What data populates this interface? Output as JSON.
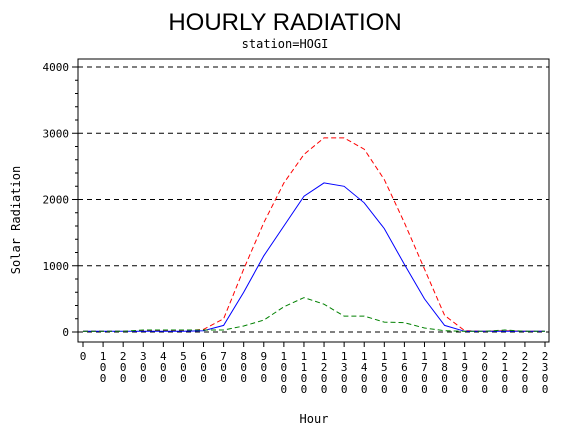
{
  "chart_data": {
    "type": "line",
    "title": "HOURLY RADIATION",
    "subtitle": "station=HOGI",
    "xlabel": "Hour",
    "ylabel": "Solar Radiation",
    "xlim": [
      0,
      2300
    ],
    "ylim": [
      0,
      4000
    ],
    "yticks": [
      0,
      1000,
      2000,
      3000,
      4000
    ],
    "xticks": [
      "0",
      "100",
      "200",
      "300",
      "400",
      "500",
      "600",
      "700",
      "800",
      "900",
      "1000",
      "1100",
      "1200",
      "1300",
      "1400",
      "1500",
      "1600",
      "1700",
      "1800",
      "1900",
      "2000",
      "2100",
      "2200",
      "2300"
    ],
    "grid": "horizontal dashed",
    "x": [
      0,
      100,
      200,
      300,
      400,
      500,
      600,
      700,
      800,
      900,
      1000,
      1100,
      1200,
      1300,
      1400,
      1500,
      1600,
      1700,
      1800,
      1900,
      2000,
      2100,
      2200,
      2300
    ],
    "series": [
      {
        "color": "#ff0000",
        "style": "dashed",
        "values": [
          10,
          10,
          10,
          20,
          20,
          20,
          40,
          200,
          950,
          1650,
          2250,
          2680,
          2930,
          2930,
          2760,
          2300,
          1650,
          950,
          250,
          20,
          10,
          20,
          10,
          10
        ]
      },
      {
        "color": "#0000ff",
        "style": "solid",
        "values": [
          10,
          10,
          10,
          10,
          10,
          10,
          20,
          100,
          600,
          1150,
          1600,
          2050,
          2250,
          2200,
          1950,
          1560,
          1020,
          500,
          100,
          10,
          10,
          10,
          10,
          10
        ]
      },
      {
        "color": "#008000",
        "style": "dashed",
        "values": [
          10,
          10,
          10,
          30,
          30,
          30,
          30,
          30,
          90,
          180,
          380,
          520,
          420,
          240,
          240,
          150,
          140,
          60,
          20,
          10,
          10,
          30,
          10,
          10
        ]
      }
    ]
  }
}
